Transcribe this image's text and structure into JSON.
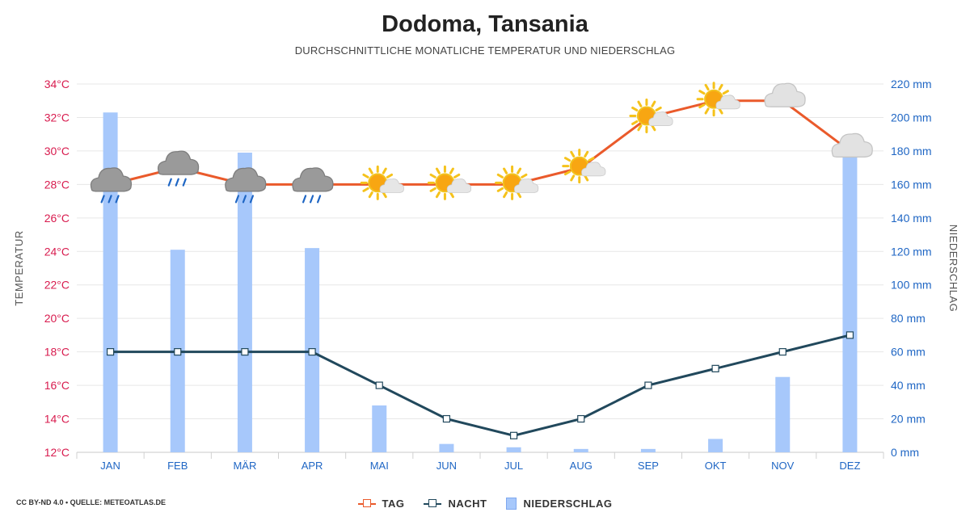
{
  "header": {
    "title": "Dodoma, Tansania",
    "subtitle": "DURCHSCHNITTLICHE MONATLICHE TEMPERATUR UND NIEDERSCHLAG"
  },
  "footer": {
    "credit": "CC BY-ND 4.0 • QUELLE: METEOATLAS.DE"
  },
  "legend": {
    "day": "TAG",
    "night": "NACHT",
    "precip": "NIEDERSCHLAG"
  },
  "colors": {
    "day": "#ea5a2b",
    "night": "#21485c",
    "precip": "#a7c8fb",
    "left_axis": "#d81b4e",
    "right_axis": "#1f66c4"
  },
  "chart_data": {
    "type": "bar+line",
    "categories": [
      "JAN",
      "FEB",
      "MÄR",
      "APR",
      "MAI",
      "JUN",
      "JUL",
      "AUG",
      "SEP",
      "OKT",
      "NOV",
      "DEZ"
    ],
    "series": [
      {
        "name": "TAG",
        "type": "line",
        "axis": "left",
        "values": [
          28,
          29,
          28,
          28,
          28,
          28,
          28,
          29,
          32,
          33,
          33,
          30
        ]
      },
      {
        "name": "NACHT",
        "type": "line",
        "axis": "left",
        "values": [
          18,
          18,
          18,
          18,
          16,
          14,
          13,
          14,
          16,
          17,
          18,
          19
        ]
      },
      {
        "name": "NIEDERSCHLAG",
        "type": "bar",
        "axis": "right",
        "values": [
          203,
          121,
          179,
          122,
          28,
          5,
          3,
          2,
          2,
          8,
          45,
          180
        ]
      }
    ],
    "weather_icons": [
      "cloud-rain-icon",
      "cloud-rain-icon",
      "cloud-rain-icon",
      "cloud-rain-icon",
      "sun-cloud-icon",
      "sun-cloud-icon",
      "sun-cloud-icon",
      "sun-cloud-icon",
      "sun-cloud-icon",
      "sun-cloud-icon",
      "cloud-icon",
      "cloud-icon"
    ],
    "left_axis": {
      "label": "TEMPERATUR",
      "min": 12,
      "max": 34,
      "step": 2,
      "unit": "°C"
    },
    "right_axis": {
      "label": "NIEDERSCHLAG",
      "min": 0,
      "max": 220,
      "step": 20,
      "unit": " mm"
    },
    "grid": true,
    "legend_position": "bottom-center"
  }
}
